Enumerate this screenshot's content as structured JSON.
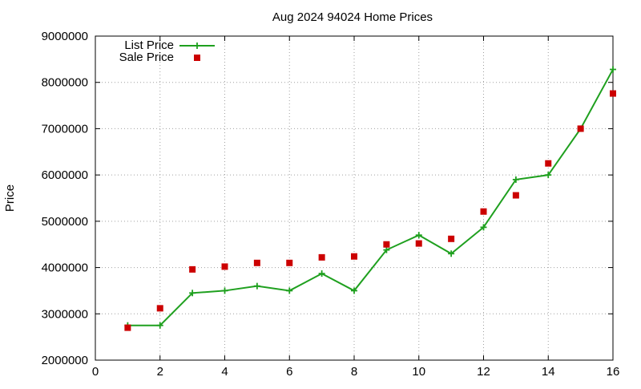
{
  "chart_data": {
    "type": "line",
    "title": "Aug 2024 94024 Home Prices",
    "xlabel": "",
    "ylabel": "Price",
    "xlim": [
      0,
      16
    ],
    "ylim": [
      2000000,
      9000000
    ],
    "x_ticks": [
      0,
      2,
      4,
      6,
      8,
      10,
      12,
      14,
      16
    ],
    "y_ticks": [
      2000000,
      3000000,
      4000000,
      5000000,
      6000000,
      7000000,
      8000000,
      9000000
    ],
    "x_tick_labels": [
      "0",
      "2",
      "4",
      "6",
      "8",
      "10",
      "12",
      "14",
      "16"
    ],
    "y_tick_labels": [
      "2000000",
      "3000000",
      "4000000",
      "5000000",
      "6000000",
      "7000000",
      "8000000",
      "9000000"
    ],
    "grid": true,
    "legend_position": "top-left",
    "series": [
      {
        "name": "List Price",
        "style": "line-with-plus-markers",
        "color": "#1fa01f",
        "x": [
          1,
          2,
          3,
          4,
          5,
          6,
          7,
          8,
          9,
          10,
          11,
          12,
          13,
          14,
          15,
          16
        ],
        "values": [
          2750000,
          2750000,
          3450000,
          3500000,
          3600000,
          3500000,
          3870000,
          3500000,
          4380000,
          4700000,
          4300000,
          4870000,
          5900000,
          6000000,
          7000000,
          8280000
        ]
      },
      {
        "name": "Sale Price",
        "style": "square-markers",
        "color": "#cc0000",
        "x": [
          1,
          2,
          3,
          4,
          5,
          6,
          7,
          8,
          9,
          10,
          11,
          12,
          13,
          14,
          15,
          16
        ],
        "values": [
          2700000,
          3120000,
          3960000,
          4020000,
          4100000,
          4100000,
          4220000,
          4240000,
          4500000,
          4520000,
          4620000,
          5210000,
          5560000,
          6250000,
          7000000,
          7760000
        ]
      }
    ]
  }
}
